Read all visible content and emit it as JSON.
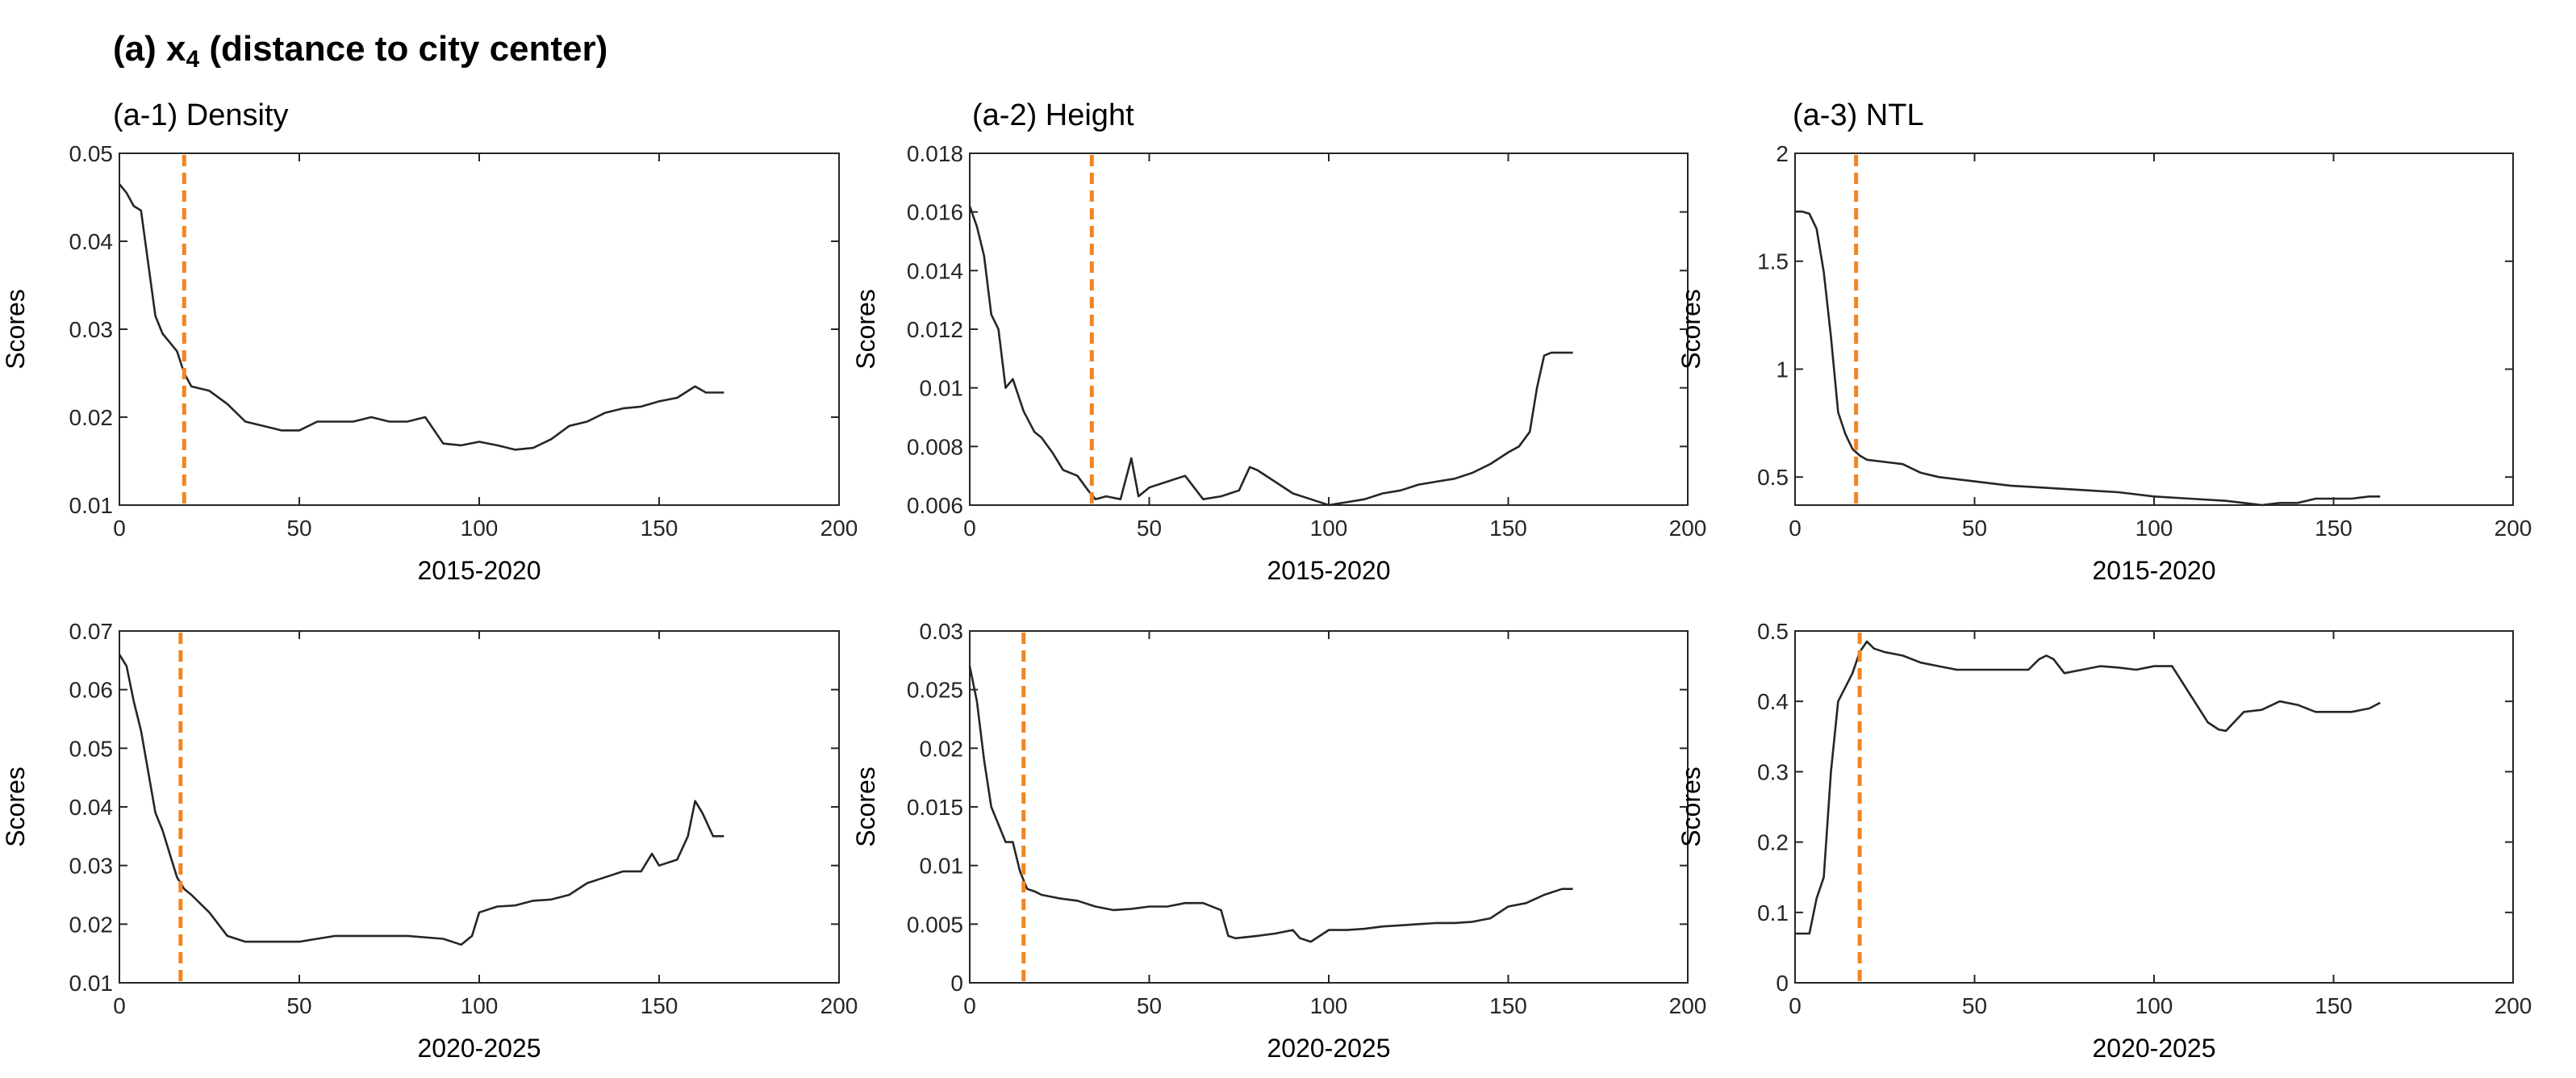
{
  "figure_title": {
    "prefix": "(a) x",
    "sub": "4",
    "suffix": " (distance to city center)"
  },
  "chart_data": [
    {
      "id": "a1-top",
      "type": "line",
      "title": "(a-1) Density",
      "xlabel": "2015-2020",
      "ylabel": "Scores",
      "xlim": [
        0,
        200
      ],
      "ylim": [
        0.01,
        0.05
      ],
      "xticks": [
        0,
        50,
        100,
        150,
        200
      ],
      "xtick_labels": [
        "0",
        "50",
        "100",
        "150",
        "200"
      ],
      "yticks": [
        0.01,
        0.02,
        0.03,
        0.04,
        0.05
      ],
      "ytick_labels": [
        "0.01",
        "0.02",
        "0.03",
        "0.04",
        "0.05"
      ],
      "threshold_x": 18,
      "x": [
        0,
        2,
        4,
        6,
        8,
        10,
        12,
        14,
        16,
        18,
        20,
        25,
        30,
        35,
        40,
        45,
        50,
        55,
        60,
        65,
        70,
        75,
        80,
        85,
        90,
        95,
        100,
        105,
        110,
        115,
        120,
        125,
        130,
        135,
        140,
        145,
        150,
        155,
        160,
        163,
        168
      ],
      "y": [
        0.0465,
        0.0455,
        0.044,
        0.0435,
        0.0375,
        0.0315,
        0.0295,
        0.0285,
        0.0275,
        0.025,
        0.0235,
        0.023,
        0.0215,
        0.0195,
        0.019,
        0.0185,
        0.0185,
        0.0195,
        0.0195,
        0.0195,
        0.02,
        0.0195,
        0.0195,
        0.02,
        0.017,
        0.0168,
        0.0172,
        0.0168,
        0.0163,
        0.0165,
        0.0175,
        0.019,
        0.0195,
        0.0205,
        0.021,
        0.0212,
        0.0218,
        0.0222,
        0.0235,
        0.0228,
        0.0228
      ]
    },
    {
      "id": "a2-top",
      "type": "line",
      "title": "(a-2) Height",
      "xlabel": "2015-2020",
      "ylabel": "Scores",
      "xlim": [
        0,
        200
      ],
      "ylim": [
        0.006,
        0.018
      ],
      "xticks": [
        0,
        50,
        100,
        150,
        200
      ],
      "xtick_labels": [
        "0",
        "50",
        "100",
        "150",
        "200"
      ],
      "yticks": [
        0.006,
        0.008,
        0.01,
        0.012,
        0.014,
        0.016,
        0.018
      ],
      "ytick_labels": [
        "0.006",
        "0.008",
        "0.01",
        "0.012",
        "0.014",
        "0.016",
        "0.018"
      ],
      "threshold_x": 34,
      "x": [
        0,
        2,
        4,
        6,
        8,
        10,
        12,
        15,
        18,
        20,
        23,
        26,
        30,
        33,
        35,
        38,
        42,
        45,
        47,
        50,
        55,
        60,
        65,
        70,
        75,
        78,
        80,
        85,
        90,
        95,
        100,
        105,
        110,
        115,
        120,
        125,
        130,
        135,
        140,
        145,
        150,
        153,
        156,
        158,
        160,
        162,
        168
      ],
      "y": [
        0.0162,
        0.0155,
        0.0145,
        0.0125,
        0.012,
        0.01,
        0.0103,
        0.0092,
        0.0085,
        0.0083,
        0.0078,
        0.0072,
        0.007,
        0.0065,
        0.0062,
        0.0063,
        0.0062,
        0.0076,
        0.0063,
        0.0066,
        0.0068,
        0.007,
        0.0062,
        0.0063,
        0.0065,
        0.0073,
        0.0072,
        0.0068,
        0.0064,
        0.0062,
        0.006,
        0.0061,
        0.0062,
        0.0064,
        0.0065,
        0.0067,
        0.0068,
        0.0069,
        0.0071,
        0.0074,
        0.0078,
        0.008,
        0.0085,
        0.01,
        0.0111,
        0.0112,
        0.0112
      ]
    },
    {
      "id": "a3-top",
      "type": "line",
      "title": "(a-3) NTL",
      "xlabel": "2015-2020",
      "ylabel": "Scores",
      "xlim": [
        0,
        200
      ],
      "ylim": [
        0.37,
        2
      ],
      "xticks": [
        0,
        50,
        100,
        150,
        200
      ],
      "xtick_labels": [
        "0",
        "50",
        "100",
        "150",
        "200"
      ],
      "yticks": [
        0.5,
        1,
        1.5,
        2
      ],
      "ytick_labels": [
        "0.5",
        "1",
        "1.5",
        "2"
      ],
      "threshold_x": 17,
      "x": [
        0,
        2,
        4,
        6,
        8,
        10,
        12,
        14,
        16,
        18,
        20,
        25,
        30,
        35,
        40,
        50,
        60,
        70,
        80,
        90,
        100,
        110,
        120,
        125,
        130,
        135,
        140,
        145,
        150,
        155,
        160,
        163
      ],
      "y": [
        1.73,
        1.73,
        1.72,
        1.65,
        1.45,
        1.15,
        0.8,
        0.7,
        0.63,
        0.6,
        0.58,
        0.57,
        0.56,
        0.52,
        0.5,
        0.48,
        0.46,
        0.45,
        0.44,
        0.43,
        0.41,
        0.4,
        0.39,
        0.38,
        0.37,
        0.38,
        0.38,
        0.4,
        0.4,
        0.4,
        0.41,
        0.41
      ]
    },
    {
      "id": "a1-bot",
      "type": "line",
      "title": "",
      "xlabel": "2020-2025",
      "ylabel": "Scores",
      "xlim": [
        0,
        200
      ],
      "ylim": [
        0.01,
        0.07
      ],
      "xticks": [
        0,
        50,
        100,
        150,
        200
      ],
      "xtick_labels": [
        "0",
        "50",
        "100",
        "150",
        "200"
      ],
      "yticks": [
        0.01,
        0.02,
        0.03,
        0.04,
        0.05,
        0.06,
        0.07
      ],
      "ytick_labels": [
        "0.01",
        "0.02",
        "0.03",
        "0.04",
        "0.05",
        "0.06",
        "0.07"
      ],
      "threshold_x": 17,
      "x": [
        0,
        2,
        4,
        6,
        8,
        10,
        12,
        14,
        16,
        18,
        20,
        25,
        30,
        35,
        40,
        50,
        60,
        70,
        80,
        90,
        95,
        98,
        100,
        105,
        110,
        115,
        120,
        125,
        130,
        135,
        140,
        145,
        148,
        150,
        155,
        158,
        160,
        162,
        165,
        168
      ],
      "y": [
        0.066,
        0.064,
        0.058,
        0.053,
        0.046,
        0.039,
        0.036,
        0.032,
        0.028,
        0.026,
        0.025,
        0.022,
        0.018,
        0.017,
        0.017,
        0.017,
        0.018,
        0.018,
        0.018,
        0.0175,
        0.0165,
        0.018,
        0.022,
        0.023,
        0.0232,
        0.024,
        0.0242,
        0.025,
        0.027,
        0.028,
        0.029,
        0.029,
        0.032,
        0.03,
        0.031,
        0.035,
        0.041,
        0.039,
        0.035,
        0.035
      ]
    },
    {
      "id": "a2-bot",
      "type": "line",
      "title": "",
      "xlabel": "2020-2025",
      "ylabel": "Scores",
      "xlim": [
        0,
        200
      ],
      "ylim": [
        0,
        0.03
      ],
      "xticks": [
        0,
        50,
        100,
        150,
        200
      ],
      "xtick_labels": [
        "0",
        "50",
        "100",
        "150",
        "200"
      ],
      "yticks": [
        0,
        0.005,
        0.01,
        0.015,
        0.02,
        0.025,
        0.03
      ],
      "ytick_labels": [
        "0",
        "0.005",
        "0.01",
        "0.015",
        "0.02",
        "0.025",
        "0.03"
      ],
      "threshold_x": 15,
      "x": [
        0,
        2,
        4,
        6,
        8,
        10,
        12,
        14,
        16,
        18,
        20,
        25,
        30,
        35,
        40,
        45,
        50,
        55,
        60,
        65,
        70,
        72,
        74,
        80,
        85,
        90,
        92,
        95,
        100,
        105,
        110,
        115,
        120,
        125,
        130,
        135,
        140,
        145,
        150,
        155,
        160,
        165,
        168
      ],
      "y": [
        0.027,
        0.024,
        0.019,
        0.015,
        0.0135,
        0.012,
        0.012,
        0.0095,
        0.008,
        0.0078,
        0.0075,
        0.0072,
        0.007,
        0.0065,
        0.0062,
        0.0063,
        0.0065,
        0.0065,
        0.0068,
        0.0068,
        0.0062,
        0.004,
        0.0038,
        0.004,
        0.0042,
        0.0045,
        0.0038,
        0.0035,
        0.0045,
        0.0045,
        0.0046,
        0.0048,
        0.0049,
        0.005,
        0.0051,
        0.0051,
        0.0052,
        0.0055,
        0.0065,
        0.0068,
        0.0075,
        0.008,
        0.008
      ]
    },
    {
      "id": "a3-bot",
      "type": "line",
      "title": "",
      "xlabel": "2020-2025",
      "ylabel": "Scores",
      "xlim": [
        0,
        200
      ],
      "ylim": [
        0,
        0.5
      ],
      "xticks": [
        0,
        50,
        100,
        150,
        200
      ],
      "xtick_labels": [
        "0",
        "50",
        "100",
        "150",
        "200"
      ],
      "yticks": [
        0,
        0.1,
        0.2,
        0.3,
        0.4,
        0.5
      ],
      "ytick_labels": [
        "0",
        "0.1",
        "0.2",
        "0.3",
        "0.4",
        "0.5"
      ],
      "threshold_x": 18,
      "x": [
        0,
        2,
        4,
        6,
        8,
        10,
        12,
        14,
        16,
        18,
        20,
        22,
        25,
        30,
        35,
        40,
        45,
        50,
        55,
        60,
        65,
        68,
        70,
        72,
        75,
        80,
        85,
        90,
        95,
        100,
        105,
        110,
        115,
        118,
        120,
        125,
        130,
        135,
        140,
        145,
        150,
        155,
        160,
        163
      ],
      "y": [
        0.07,
        0.07,
        0.07,
        0.12,
        0.15,
        0.3,
        0.4,
        0.42,
        0.44,
        0.47,
        0.485,
        0.475,
        0.47,
        0.465,
        0.455,
        0.45,
        0.445,
        0.445,
        0.445,
        0.445,
        0.445,
        0.46,
        0.465,
        0.46,
        0.44,
        0.445,
        0.45,
        0.448,
        0.445,
        0.45,
        0.45,
        0.41,
        0.37,
        0.36,
        0.358,
        0.385,
        0.388,
        0.4,
        0.395,
        0.385,
        0.385,
        0.385,
        0.39,
        0.398
      ]
    }
  ]
}
